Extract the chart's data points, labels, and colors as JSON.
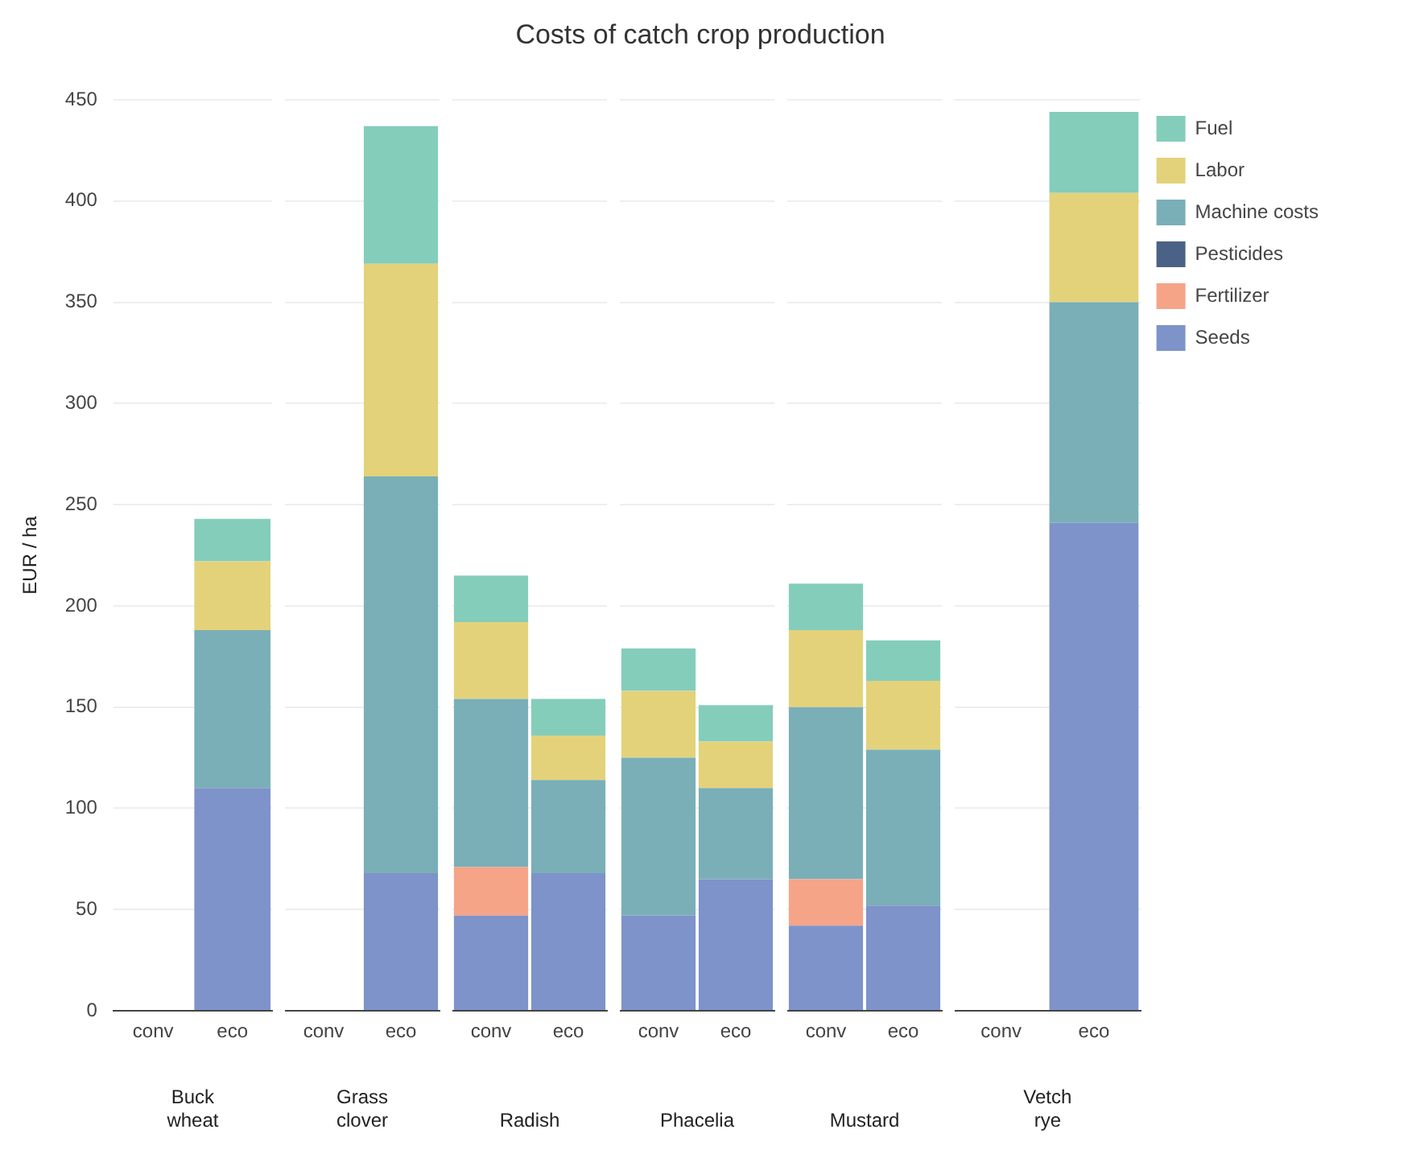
{
  "chart_data": [
    {
      "type": "bar",
      "xlabel": "Buck wheat",
      "ylabel": "EUR / ha",
      "categories": [
        "conv",
        "eco"
      ],
      "stacked": true,
      "grid": "y",
      "ylim": [
        0,
        450
      ],
      "yticks": [
        0,
        50,
        100,
        150,
        200,
        250,
        300,
        350,
        400,
        450
      ],
      "series": [
        {
          "color": "#7d93c9",
          "values": [
            0,
            110
          ]
        },
        {
          "color": "#f5a488",
          "values": [
            0,
            0
          ]
        },
        {
          "color": "#4a6285",
          "values": [
            0,
            0
          ]
        },
        {
          "color": "#7aafb8",
          "values": [
            0,
            78
          ]
        },
        {
          "color": "#e3d27a",
          "values": [
            0,
            34
          ]
        },
        {
          "color": "#84cdbb",
          "values": [
            0,
            21
          ]
        }
      ]
    },
    {
      "type": "bar",
      "xlabel": "Grass clover",
      "categories": [
        "conv",
        "eco"
      ],
      "stacked": true,
      "grid": "y",
      "ylim": [
        0,
        450
      ],
      "yticks": [
        0,
        50,
        100,
        150,
        200,
        250,
        300,
        350,
        400,
        450
      ],
      "tick_labels": "x",
      "series": [
        {
          "color": "#7d93c9",
          "values": [
            0,
            68
          ]
        },
        {
          "color": "#f5a488",
          "values": [
            0,
            0
          ]
        },
        {
          "color": "#4a6285",
          "values": [
            0,
            0
          ]
        },
        {
          "color": "#7aafb8",
          "values": [
            0,
            196
          ]
        },
        {
          "color": "#e3d27a",
          "values": [
            0,
            105
          ]
        },
        {
          "color": "#84cdbb",
          "values": [
            0,
            68
          ]
        }
      ]
    },
    {
      "type": "bar",
      "xlabel": "Radish",
      "categories": [
        "conv",
        "eco"
      ],
      "stacked": true,
      "grid": "y",
      "ylim": [
        0,
        450
      ],
      "yticks": [
        0,
        50,
        100,
        150,
        200,
        250,
        300,
        350,
        400,
        450
      ],
      "tick_labels": "x",
      "series": [
        {
          "color": "#7d93c9",
          "values": [
            47,
            68
          ]
        },
        {
          "color": "#f5a488",
          "values": [
            24,
            0
          ]
        },
        {
          "color": "#4a6285",
          "values": [
            0,
            0
          ]
        },
        {
          "color": "#7aafb8",
          "values": [
            83,
            46
          ]
        },
        {
          "color": "#e3d27a",
          "values": [
            38,
            22
          ]
        },
        {
          "color": "#84cdbb",
          "values": [
            23,
            18
          ]
        }
      ]
    },
    {
      "type": "bar",
      "title": "Costs of catch crop production",
      "xlabel": "Phacelia",
      "categories": [
        "conv",
        "eco"
      ],
      "stacked": true,
      "grid": "y",
      "ylim": [
        0,
        450
      ],
      "yticks": [
        0,
        50,
        100,
        150,
        200,
        250,
        300,
        350,
        400,
        450
      ],
      "tick_labels": "x",
      "series": [
        {
          "color": "#7d93c9",
          "values": [
            47,
            65
          ]
        },
        {
          "color": "#f5a488",
          "values": [
            0,
            0
          ]
        },
        {
          "color": "#4a6285",
          "values": [
            0,
            0
          ]
        },
        {
          "color": "#7aafb8",
          "values": [
            78,
            45
          ]
        },
        {
          "color": "#e3d27a",
          "values": [
            33,
            23
          ]
        },
        {
          "color": "#84cdbb",
          "values": [
            21,
            18
          ]
        }
      ]
    },
    {
      "type": "bar",
      "xlabel": "Mustard",
      "categories": [
        "conv",
        "eco"
      ],
      "stacked": true,
      "grid": "y",
      "ylim": [
        0,
        450
      ],
      "yticks": [
        0,
        50,
        100,
        150,
        200,
        250,
        300,
        350,
        400,
        450
      ],
      "tick_labels": "x",
      "series": [
        {
          "color": "#7d93c9",
          "values": [
            42,
            52
          ]
        },
        {
          "color": "#f5a488",
          "values": [
            23,
            0
          ]
        },
        {
          "color": "#4a6285",
          "values": [
            0,
            0
          ]
        },
        {
          "color": "#7aafb8",
          "values": [
            85,
            77
          ]
        },
        {
          "color": "#e3d27a",
          "values": [
            38,
            34
          ]
        },
        {
          "color": "#84cdbb",
          "values": [
            23,
            20
          ]
        }
      ]
    },
    {
      "type": "bar",
      "xlabel": "Vetch rye",
      "categories": [
        "conv",
        "eco"
      ],
      "stacked": true,
      "grid": "y",
      "legend": "top right",
      "ylim": [
        0,
        450
      ],
      "yticks": [
        0,
        50,
        100,
        150,
        200,
        250,
        300,
        350,
        400,
        450
      ],
      "tick_labels": "x",
      "series": [
        {
          "name": "Seeds",
          "color": "#7d93c9",
          "values": [
            0,
            241
          ]
        },
        {
          "name": "Fertilizer",
          "color": "#f5a488",
          "values": [
            0,
            0
          ]
        },
        {
          "name": "Pesticides",
          "color": "#4a6285",
          "values": [
            0,
            0
          ]
        },
        {
          "name": "Machine costs",
          "color": "#7aafb8",
          "values": [
            0,
            109
          ]
        },
        {
          "name": "Labor",
          "color": "#e3d27a",
          "values": [
            0,
            54
          ]
        },
        {
          "name": "Fuel",
          "color": "#84cdbb",
          "values": [
            0,
            40
          ]
        }
      ]
    }
  ]
}
